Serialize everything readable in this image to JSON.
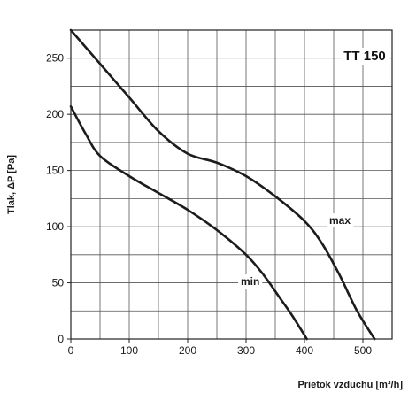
{
  "chart_data": {
    "type": "line",
    "title": "TT 150",
    "xlabel": "Prietok vzduchu  [m³/h]",
    "ylabel": "Tlak, ΔP [Pa]",
    "xlim": [
      0,
      550
    ],
    "ylim": [
      0,
      275
    ],
    "x_ticks": [
      "0",
      "100",
      "200",
      "300",
      "400",
      "500"
    ],
    "y_ticks": [
      "0",
      "50",
      "100",
      "150",
      "200",
      "250"
    ],
    "grid": true,
    "series": [
      {
        "name": "max",
        "x": [
          0,
          50,
          100,
          150,
          200,
          250,
          300,
          350,
          400,
          430,
          460,
          490,
          520
        ],
        "y": [
          275,
          245,
          215,
          185,
          165,
          157,
          145,
          127,
          105,
          85,
          57,
          25,
          0
        ]
      },
      {
        "name": "min",
        "x": [
          0,
          25,
          50,
          100,
          150,
          200,
          250,
          300,
          330,
          360,
          380,
          404
        ],
        "y": [
          207,
          183,
          163,
          145,
          130,
          115,
          97,
          75,
          57,
          35,
          20,
          0
        ]
      }
    ]
  }
}
